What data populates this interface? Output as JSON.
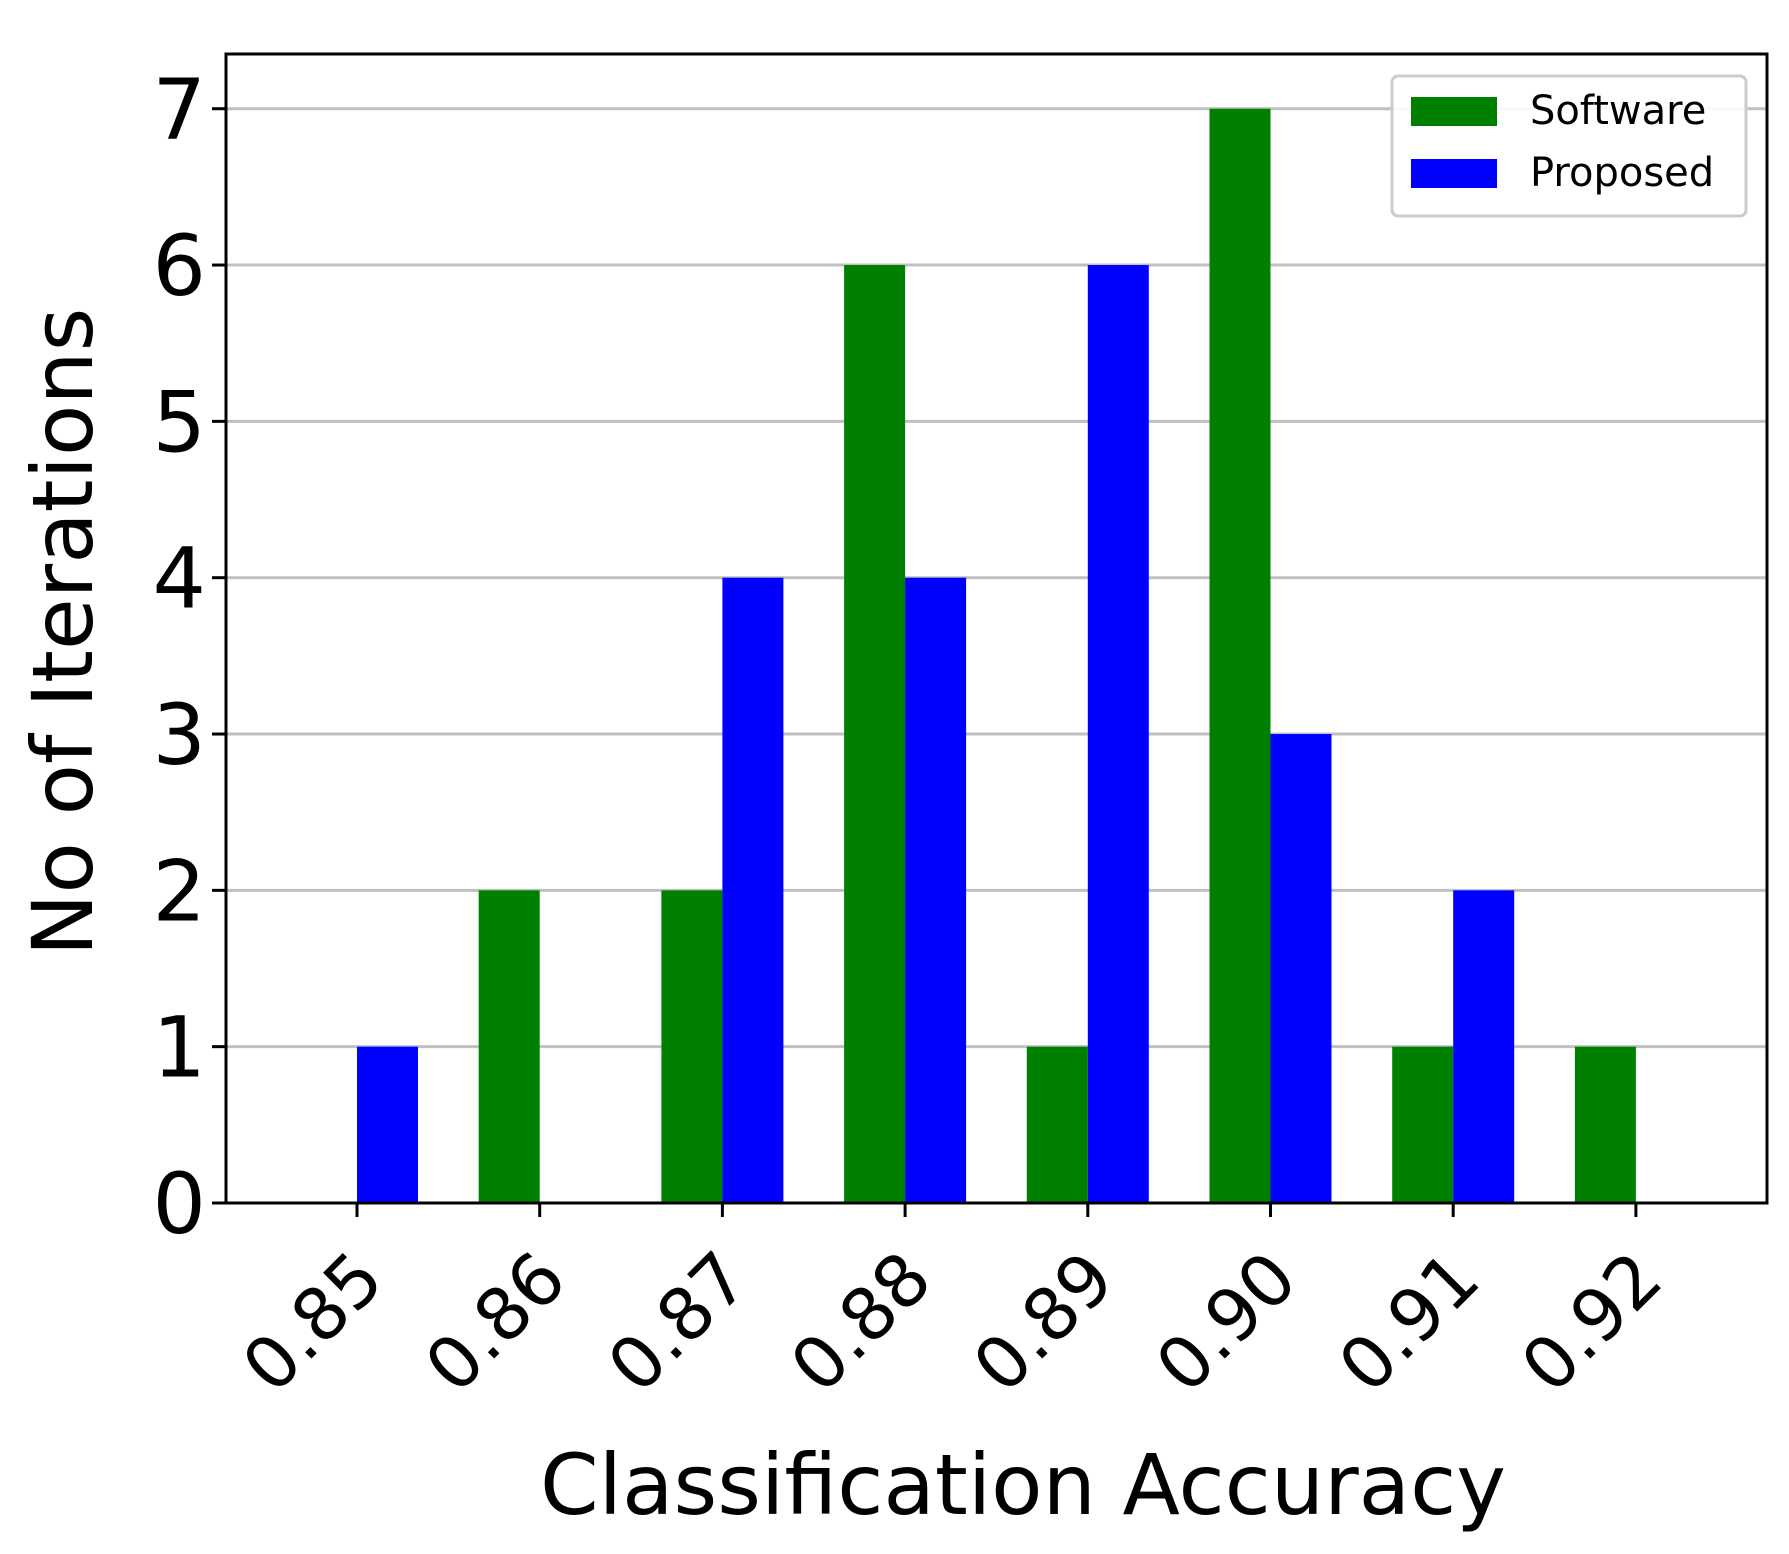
{
  "chart_data": {
    "type": "bar",
    "xlabel": "Classification Accuracy",
    "ylabel": "No of Iterations",
    "categories": [
      "0.85",
      "0.86",
      "0.87",
      "0.88",
      "0.89",
      "0.90",
      "0.91",
      "0.92"
    ],
    "series": [
      {
        "name": "Software",
        "color": "#008000",
        "values": [
          0,
          2,
          2,
          6,
          1,
          7,
          1,
          1
        ]
      },
      {
        "name": "Proposed",
        "color": "#0000ff",
        "values": [
          1,
          0,
          4,
          4,
          6,
          3,
          2,
          0
        ]
      }
    ],
    "ylim": [
      0,
      7.35
    ],
    "yticks": [
      "0",
      "1",
      "2",
      "3",
      "4",
      "5",
      "6",
      "7"
    ],
    "grid": "horizontal",
    "legend_position": "top-right"
  }
}
